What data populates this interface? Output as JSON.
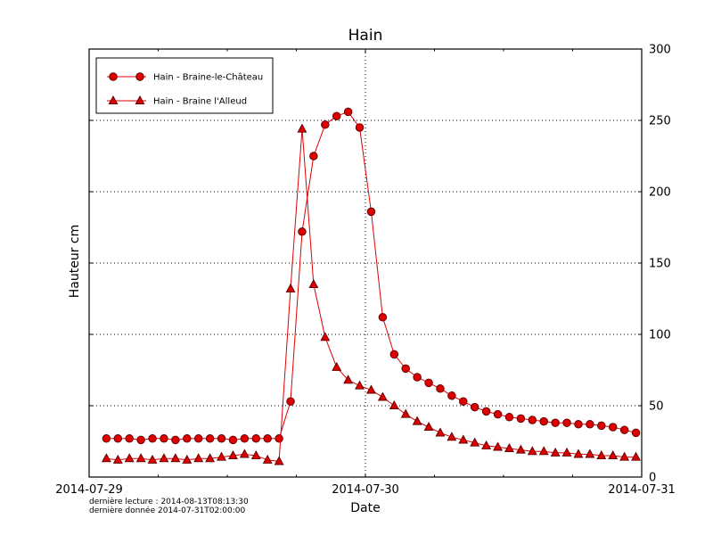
{
  "figure": {
    "title": "Hain",
    "xlabel": "Date",
    "ylabel": "Hauteur cm",
    "footnotes": [
      "dernière lecture : 2014-08-13T08:13:30",
      "dernière donnée  2014-07-31T02:00:00"
    ]
  },
  "chart_data": {
    "type": "line",
    "title": "Hain",
    "xlabel": "Date",
    "ylabel": "Hauteur cm",
    "ylim": [
      0,
      300
    ],
    "xlim_hours": [
      0,
      48
    ],
    "x_tick_hours": [
      0,
      24,
      48
    ],
    "x_tick_labels": [
      "2014-07-29",
      "2014-07-30",
      "2014-07-31"
    ],
    "y_ticks": [
      0,
      50,
      100,
      150,
      200,
      250,
      300
    ],
    "grid": "dotted",
    "legend_position": "upper-left",
    "colors": {
      "line": "#dd0000",
      "marker_fill": "#dd0000",
      "marker_edge": "#5a0000",
      "frame": "#000000",
      "grid": "#000000"
    },
    "x_hours": [
      1.5,
      2.5,
      3.5,
      4.5,
      5.5,
      6.5,
      7.5,
      8.5,
      9.5,
      10.5,
      11.5,
      12.5,
      13.5,
      14.5,
      15.5,
      16.5,
      17.5,
      18.5,
      19.5,
      20.5,
      21.5,
      22.5,
      23.5,
      24.5,
      25.5,
      26.5,
      27.5,
      28.5,
      29.5,
      30.5,
      31.5,
      32.5,
      33.5,
      34.5,
      35.5,
      36.5,
      37.5,
      38.5,
      39.5,
      40.5,
      41.5,
      42.5,
      43.5,
      44.5,
      45.5,
      46.5,
      47.5
    ],
    "series": [
      {
        "name": "Hain - Braine-le-Château",
        "marker": "circle",
        "values": [
          27,
          27,
          27,
          26,
          27,
          27,
          26,
          27,
          27,
          27,
          27,
          26,
          27,
          27,
          27,
          27,
          53,
          172,
          225,
          247,
          253,
          256,
          245,
          186,
          112,
          86,
          76,
          70,
          66,
          62,
          57,
          53,
          49,
          46,
          44,
          42,
          41,
          40,
          39,
          38,
          38,
          37,
          37,
          36,
          35,
          33,
          31
        ]
      },
      {
        "name": "Hain - Braine l'Alleud",
        "marker": "triangle",
        "values": [
          13,
          12,
          13,
          13,
          12,
          13,
          13,
          12,
          13,
          13,
          14,
          15,
          16,
          15,
          12,
          11,
          132,
          244,
          135,
          98,
          77,
          68,
          64,
          61,
          56,
          50,
          44,
          39,
          35,
          31,
          28,
          26,
          24,
          22,
          21,
          20,
          19,
          18,
          18,
          17,
          17,
          16,
          16,
          15,
          15,
          14,
          14
        ]
      }
    ]
  }
}
